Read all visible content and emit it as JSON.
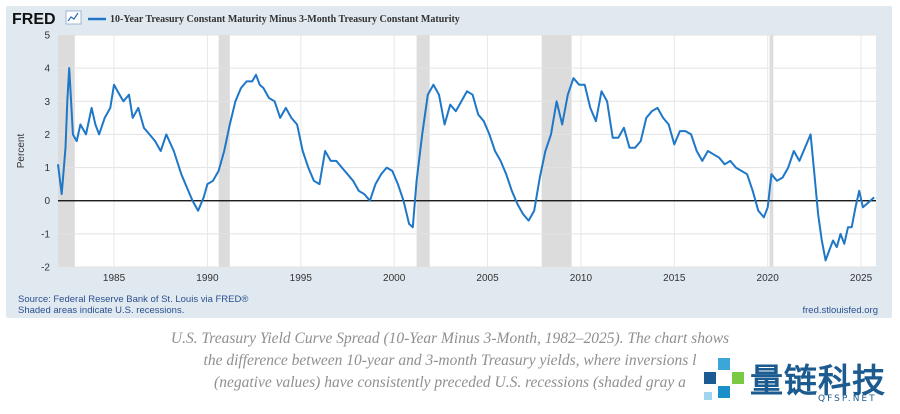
{
  "brand": {
    "logo_text": "FRED",
    "watermark_text": "量链科技",
    "watermark_sub": "QFSP.NET"
  },
  "legend": {
    "series_label": "10-Year Treasury Constant Maturity Minus 3-Month Treasury Constant Maturity",
    "color": "#1f77c7"
  },
  "footer": {
    "source": "Source: Federal Reserve Bank of St. Louis via FRED®",
    "shaded_note": "Shaded areas indicate U.S. recessions.",
    "site": "fred.stlouisfed.org"
  },
  "caption": {
    "line1": "U.S. Treasury Yield Curve Spread (10-Year Minus 3-Month, 1982–2025). The chart shows",
    "line2": "the difference between 10-year and 3-month Treasury yields, where inversions l",
    "line3": "(negative values) have consistently preceded U.S. recessions (shaded gray a"
  },
  "chart_data": {
    "type": "line",
    "ylabel": "Percent",
    "xlim": [
      1982.0,
      2025.8
    ],
    "ylim": [
      -2,
      5
    ],
    "yticks": [
      -2,
      -1,
      0,
      1,
      2,
      3,
      4,
      5
    ],
    "xticks": [
      1985,
      1990,
      1995,
      2000,
      2005,
      2010,
      2015,
      2020,
      2025
    ],
    "zero_line": true,
    "recessions": [
      [
        1981.5,
        1982.9
      ],
      [
        1990.6,
        1991.2
      ],
      [
        2001.2,
        2001.9
      ],
      [
        2007.9,
        2009.5
      ],
      [
        2020.1,
        2020.3
      ]
    ],
    "series": [
      {
        "name": "10-Year Treasury Constant Maturity Minus 3-Month Treasury Constant Maturity",
        "color": "#1f77c7",
        "x": [
          1982.0,
          1982.2,
          1982.4,
          1982.5,
          1982.6,
          1982.7,
          1982.8,
          1983.0,
          1983.2,
          1983.5,
          1983.8,
          1984.0,
          1984.2,
          1984.5,
          1984.8,
          1985.0,
          1985.3,
          1985.5,
          1985.8,
          1986.0,
          1986.3,
          1986.6,
          1986.9,
          1987.2,
          1987.5,
          1987.8,
          1988.2,
          1988.6,
          1988.9,
          1989.2,
          1989.5,
          1989.8,
          1990.0,
          1990.3,
          1990.6,
          1990.9,
          1991.2,
          1991.5,
          1991.8,
          1992.1,
          1992.4,
          1992.6,
          1992.8,
          1993.0,
          1993.3,
          1993.6,
          1993.9,
          1994.2,
          1994.5,
          1994.8,
          1995.1,
          1995.4,
          1995.7,
          1996.0,
          1996.3,
          1996.6,
          1996.9,
          1997.2,
          1997.5,
          1997.8,
          1998.1,
          1998.4,
          1998.7,
          1999.0,
          1999.3,
          1999.6,
          1999.9,
          2000.2,
          2000.5,
          2000.8,
          2001.0,
          2001.2,
          2001.5,
          2001.8,
          2002.1,
          2002.4,
          2002.7,
          2003.0,
          2003.3,
          2003.6,
          2003.9,
          2004.2,
          2004.5,
          2004.8,
          2005.1,
          2005.4,
          2005.7,
          2006.0,
          2006.3,
          2006.6,
          2006.9,
          2007.2,
          2007.5,
          2007.8,
          2008.1,
          2008.4,
          2008.7,
          2009.0,
          2009.3,
          2009.6,
          2009.9,
          2010.2,
          2010.5,
          2010.8,
          2011.1,
          2011.4,
          2011.7,
          2012.0,
          2012.3,
          2012.6,
          2012.9,
          2013.2,
          2013.5,
          2013.8,
          2014.1,
          2014.4,
          2014.7,
          2015.0,
          2015.3,
          2015.6,
          2015.9,
          2016.2,
          2016.5,
          2016.8,
          2017.1,
          2017.4,
          2017.7,
          2018.0,
          2018.3,
          2018.6,
          2018.9,
          2019.2,
          2019.5,
          2019.8,
          2020.0,
          2020.2,
          2020.5,
          2020.8,
          2021.1,
          2021.4,
          2021.7,
          2022.0,
          2022.3,
          2022.5,
          2022.7,
          2022.9,
          2023.1,
          2023.3,
          2023.5,
          2023.7,
          2023.9,
          2024.1,
          2024.3,
          2024.5,
          2024.7,
          2024.9,
          2025.1,
          2025.3,
          2025.5,
          2025.7
        ],
        "values": [
          1.1,
          0.2,
          1.6,
          3.0,
          4.0,
          3.0,
          2.0,
          1.8,
          2.3,
          2.0,
          2.8,
          2.3,
          2.0,
          2.5,
          2.8,
          3.5,
          3.2,
          3.0,
          3.2,
          2.5,
          2.8,
          2.2,
          2.0,
          1.8,
          1.5,
          2.0,
          1.5,
          0.8,
          0.4,
          0.0,
          -0.3,
          0.1,
          0.5,
          0.6,
          0.9,
          1.5,
          2.3,
          3.0,
          3.4,
          3.6,
          3.6,
          3.8,
          3.5,
          3.4,
          3.1,
          3.0,
          2.5,
          2.8,
          2.5,
          2.3,
          1.5,
          1.0,
          0.6,
          0.5,
          1.5,
          1.2,
          1.2,
          1.0,
          0.8,
          0.6,
          0.3,
          0.2,
          0.0,
          0.5,
          0.8,
          1.0,
          0.9,
          0.5,
          0.0,
          -0.7,
          -0.8,
          0.6,
          2.0,
          3.2,
          3.5,
          3.2,
          2.3,
          2.9,
          2.7,
          3.0,
          3.3,
          3.2,
          2.6,
          2.4,
          2.0,
          1.5,
          1.2,
          0.8,
          0.3,
          -0.1,
          -0.4,
          -0.6,
          -0.3,
          0.7,
          1.5,
          2.0,
          3.0,
          2.3,
          3.2,
          3.7,
          3.5,
          3.5,
          2.8,
          2.4,
          3.3,
          3.0,
          1.9,
          1.9,
          2.2,
          1.6,
          1.6,
          1.8,
          2.5,
          2.7,
          2.8,
          2.5,
          2.3,
          1.7,
          2.1,
          2.1,
          2.0,
          1.5,
          1.2,
          1.5,
          1.4,
          1.3,
          1.1,
          1.2,
          1.0,
          0.9,
          0.8,
          0.3,
          -0.3,
          -0.5,
          -0.2,
          0.8,
          0.6,
          0.7,
          1.0,
          1.5,
          1.2,
          1.6,
          2.0,
          0.8,
          -0.4,
          -1.2,
          -1.8,
          -1.5,
          -1.2,
          -1.4,
          -1.0,
          -1.3,
          -0.8,
          -0.8,
          -0.2,
          0.3,
          -0.2,
          -0.1,
          0.0,
          0.1
        ]
      }
    ]
  }
}
